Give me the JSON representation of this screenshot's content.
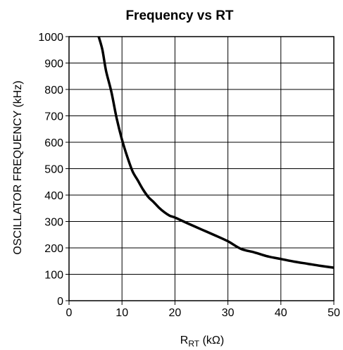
{
  "chart_data": {
    "type": "line",
    "title": "Frequency vs RT",
    "xlabel": {
      "main": "R",
      "sub": "RT",
      "unit": " (kΩ)"
    },
    "ylabel": "OSCILLATOR FREQUENCY (kHz)",
    "xlim": [
      0,
      50
    ],
    "ylim": [
      0,
      1000
    ],
    "x_ticks": [
      "0",
      "10",
      "20",
      "30",
      "40",
      "50"
    ],
    "y_ticks": [
      "0",
      "100",
      "200",
      "300",
      "400",
      "500",
      "600",
      "700",
      "800",
      "900",
      "1000"
    ],
    "grid": true,
    "series": [
      {
        "x": [
          5.6,
          6.3,
          7.0,
          8.0,
          9.0,
          10.0,
          11.0,
          12.0,
          13.0,
          14.0,
          15.0,
          16.0,
          17.0,
          18.0,
          19.0,
          20.0,
          22.5,
          25.0,
          27.5,
          30.0,
          32.5,
          35.0,
          37.5,
          40.0,
          42.5,
          45.0,
          47.5,
          50.0
        ],
        "y": [
          1000,
          950,
          870,
          790,
          690,
          610,
          545,
          490,
          455,
          420,
          392,
          373,
          352,
          335,
          322,
          315,
          292,
          270,
          248,
          225,
          196,
          183,
          168,
          158,
          148,
          140,
          132,
          125
        ]
      }
    ]
  }
}
